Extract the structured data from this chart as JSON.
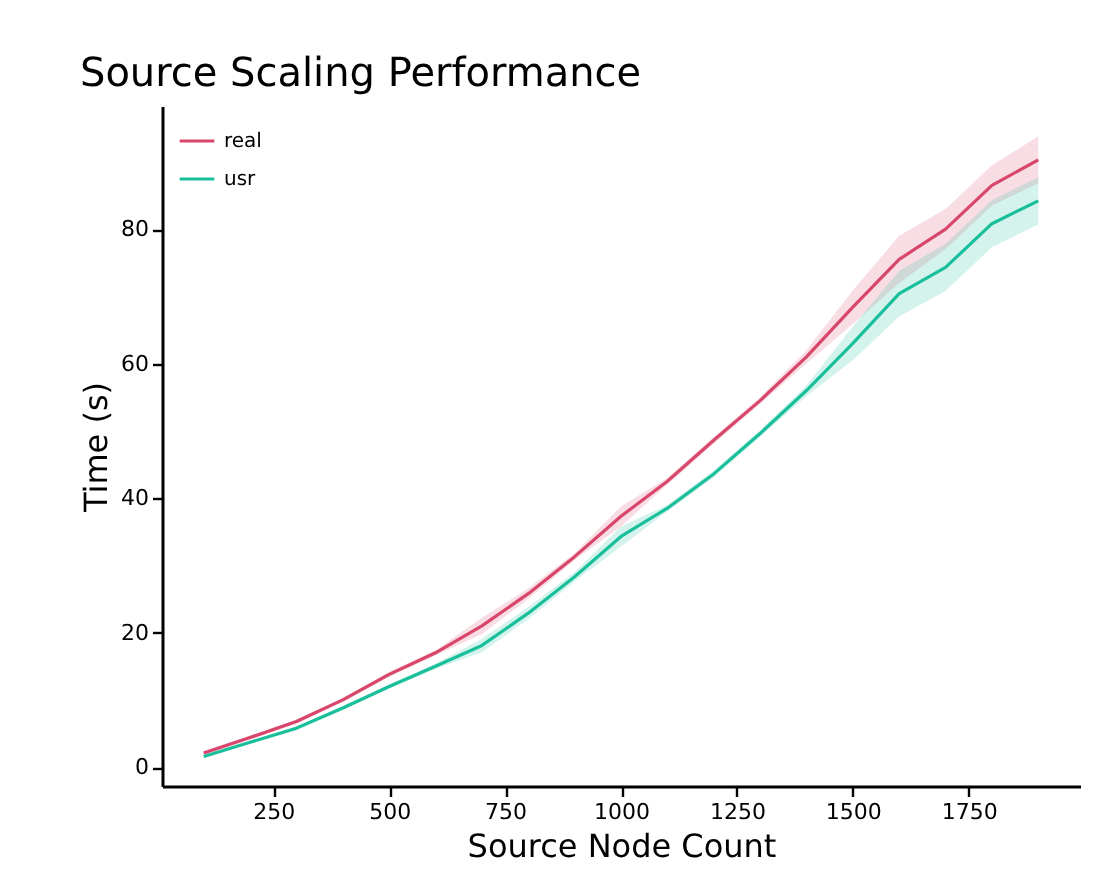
{
  "chart_data": {
    "type": "line",
    "title": "Source Scaling Performance",
    "xlabel": "Source Node Count",
    "ylabel": "Time (s)",
    "x": [
      100,
      200,
      300,
      400,
      500,
      600,
      700,
      800,
      900,
      1000,
      1100,
      1200,
      1300,
      1400,
      1500,
      1600,
      1700,
      1800,
      1900
    ],
    "series": [
      {
        "name": "real",
        "color": "#d9466b",
        "values": [
          2.1,
          4.4,
          6.8,
          10,
          13.8,
          17,
          21,
          25.8,
          31.3,
          37.3,
          42.5,
          48.6,
          54.5,
          61,
          68.4,
          75.5,
          80,
          86.5,
          90.3
        ],
        "lower": [
          1.8,
          4.1,
          6.5,
          9.7,
          13.4,
          16.6,
          19.8,
          25,
          30.8,
          35.8,
          42,
          48.1,
          54,
          60,
          65.9,
          72,
          77,
          83.5,
          86.8
        ],
        "upper": [
          2.4,
          4.7,
          7.1,
          10.3,
          14.2,
          17.4,
          22.2,
          26.6,
          31.8,
          38.8,
          43,
          49.1,
          55,
          62,
          70.9,
          79,
          83,
          89.5,
          93.8
        ]
      },
      {
        "name": "usr",
        "color": "#18bf9a",
        "values": [
          1.6,
          3.7,
          5.8,
          8.8,
          12,
          15,
          18.1,
          22.9,
          28.3,
          34.3,
          38.5,
          43.6,
          49.6,
          56,
          63,
          70.4,
          74.3,
          80.8,
          84.2
        ],
        "lower": [
          1.4,
          3.5,
          5.5,
          8.5,
          11.7,
          14.6,
          17.1,
          22,
          27.6,
          32.8,
          38,
          43.1,
          49.1,
          55.2,
          60.5,
          67,
          70.8,
          77.3,
          80.7
        ],
        "upper": [
          1.8,
          3.9,
          6.1,
          9.1,
          12.3,
          15.4,
          19.1,
          23.8,
          29,
          35.8,
          39,
          44.1,
          50.1,
          56.8,
          65.5,
          73.8,
          77.8,
          84.3,
          87.7
        ]
      }
    ],
    "xlim": [
      10,
      1990
    ],
    "ylim": [
      -2.8,
      98.3
    ],
    "xticks": [
      250,
      500,
      750,
      1000,
      1250,
      1500,
      1750
    ],
    "yticks": [
      0,
      20,
      40,
      60,
      80
    ],
    "grid": false,
    "legend": "top left",
    "marker": "none",
    "line_style": "solid"
  }
}
